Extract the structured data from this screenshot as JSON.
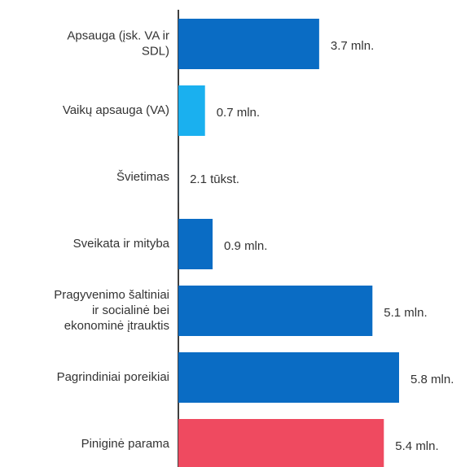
{
  "chart_data": {
    "type": "hbar",
    "categories": [
      "Apsauga (įsk. VA ir\nSDL)",
      "Vaikų apsauga (VA)",
      "Švietimas",
      "Sveikata ir mityba",
      "Pragyvenimo šaltiniai\nir socialinė bei\nekonominė įtrauktis",
      "Pagrindiniai poreikiai",
      "Piniginė parama"
    ],
    "values": [
      3.7,
      0.7,
      0.0021,
      0.9,
      5.1,
      5.8,
      5.4
    ],
    "value_labels": [
      "3.7 mln.",
      "0.7 mln.",
      "2.1 tūkst.",
      "0.9 mln.",
      "5.1 mln.",
      "5.8 mln.",
      "5.4 mln."
    ],
    "colors": [
      "#0a6cc4",
      "#1ab0ef",
      "#0a6cc4",
      "#0a6cc4",
      "#0a6cc4",
      "#0a6cc4",
      "#ef4a60"
    ]
  }
}
